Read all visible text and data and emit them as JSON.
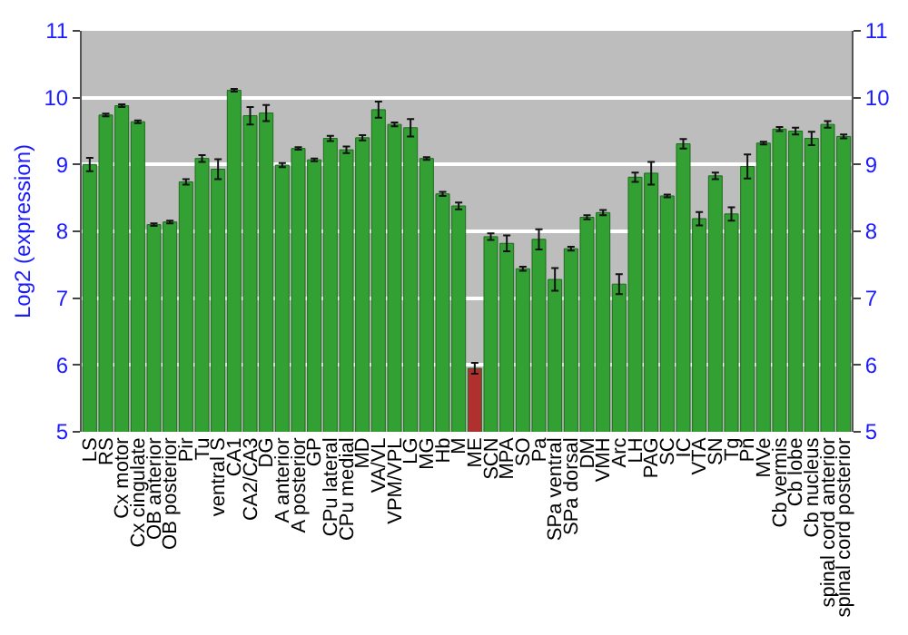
{
  "chart_data": {
    "type": "bar",
    "ylabel": "Log2 (expression)",
    "categories": [
      "LS",
      "RS",
      "Cx motor",
      "Cx cingulate",
      "OB anterior",
      "OB posterior",
      "Pir",
      "Tu",
      "ventral S",
      "CA1",
      "CA2/CA3",
      "DG",
      "A anterior",
      "A posterior",
      "GP",
      "CPu lateral",
      "CPu medial",
      "MD",
      "VA/VL",
      "VPM/VPL",
      "LG",
      "MG",
      "Hb",
      "M",
      "ME",
      "SCN",
      "MPA",
      "SO",
      "Pa",
      "SPa ventral",
      "SPa dorsal",
      "DM",
      "VMH",
      "Arc",
      "LH",
      "PAG",
      "SC",
      "IC",
      "VTA",
      "SN",
      "Tg",
      "Pn",
      "MVe",
      "Cb vermis",
      "Cb lobe",
      "Cb nucleus",
      "spinal cord anterior",
      "spinal cord posterior"
    ],
    "values": [
      9.0,
      9.74,
      9.88,
      9.64,
      8.1,
      8.14,
      8.74,
      9.09,
      8.93,
      10.11,
      9.73,
      9.77,
      8.99,
      9.24,
      9.07,
      9.39,
      9.22,
      9.4,
      9.82,
      9.6,
      9.55,
      9.09,
      8.56,
      8.38,
      5.95,
      7.92,
      7.82,
      7.44,
      7.88,
      7.28,
      7.74,
      8.21,
      8.28,
      7.21,
      8.81,
      8.87,
      8.53,
      9.31,
      8.19,
      8.83,
      8.26,
      8.97,
      9.32,
      9.53,
      9.5,
      9.39,
      9.6,
      9.42
    ],
    "errors": [
      0.1,
      0.02,
      0.02,
      0.02,
      0.02,
      0.02,
      0.04,
      0.05,
      0.15,
      0.02,
      0.13,
      0.12,
      0.03,
      0.02,
      0.02,
      0.04,
      0.05,
      0.04,
      0.12,
      0.03,
      0.13,
      0.02,
      0.03,
      0.05,
      0.08,
      0.05,
      0.12,
      0.03,
      0.15,
      0.17,
      0.03,
      0.03,
      0.04,
      0.15,
      0.07,
      0.17,
      0.02,
      0.07,
      0.1,
      0.05,
      0.1,
      0.18,
      0.02,
      0.03,
      0.05,
      0.1,
      0.05,
      0.03
    ],
    "colors": [
      "#33a033",
      "#33a033",
      "#33a033",
      "#33a033",
      "#33a033",
      "#33a033",
      "#33a033",
      "#33a033",
      "#33a033",
      "#33a033",
      "#33a033",
      "#33a033",
      "#33a033",
      "#33a033",
      "#33a033",
      "#33a033",
      "#33a033",
      "#33a033",
      "#33a033",
      "#33a033",
      "#33a033",
      "#33a033",
      "#33a033",
      "#33a033",
      "#b03030",
      "#33a033",
      "#33a033",
      "#33a033",
      "#33a033",
      "#33a033",
      "#33a033",
      "#33a033",
      "#33a033",
      "#33a033",
      "#33a033",
      "#33a033",
      "#33a033",
      "#33a033",
      "#33a033",
      "#33a033",
      "#33a033",
      "#33a033",
      "#33a033",
      "#33a033",
      "#33a033",
      "#33a033",
      "#33a033",
      "#33a033"
    ],
    "ylim": [
      5,
      11
    ],
    "yticks": [
      5,
      6,
      7,
      8,
      9,
      10,
      11
    ],
    "y2lim": [
      5,
      11
    ],
    "y2ticks": [
      5,
      6,
      7,
      8,
      9,
      10,
      11
    ],
    "grid": "y"
  }
}
